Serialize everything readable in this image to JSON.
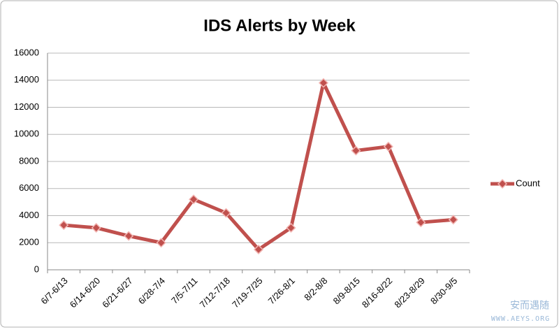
{
  "chart_data": {
    "type": "line",
    "title": "IDS Alerts by Week",
    "categories": [
      "6/7-6/13",
      "6/14-6/20",
      "6/21-6/27",
      "6/28-7/4",
      "7/5-7/11",
      "7/12-7/18",
      "7/19-7/25",
      "7/26-8/1",
      "8/2-8/8",
      "8/9-8/15",
      "8/16-8/22",
      "8/23-8/29",
      "8/30-9/5"
    ],
    "series": [
      {
        "name": "Count",
        "color": "#c0504d",
        "values": [
          3300,
          3100,
          2500,
          2000,
          5200,
          4200,
          1500,
          3100,
          13800,
          8800,
          9100,
          3500,
          3700
        ]
      }
    ],
    "ylim": [
      0,
      16000
    ],
    "yticks": [
      0,
      2000,
      4000,
      6000,
      8000,
      10000,
      12000,
      14000,
      16000
    ],
    "grid": true,
    "legend": "right"
  },
  "watermark": [
    "安而遇随",
    "WWW.AEYS.ORG"
  ]
}
